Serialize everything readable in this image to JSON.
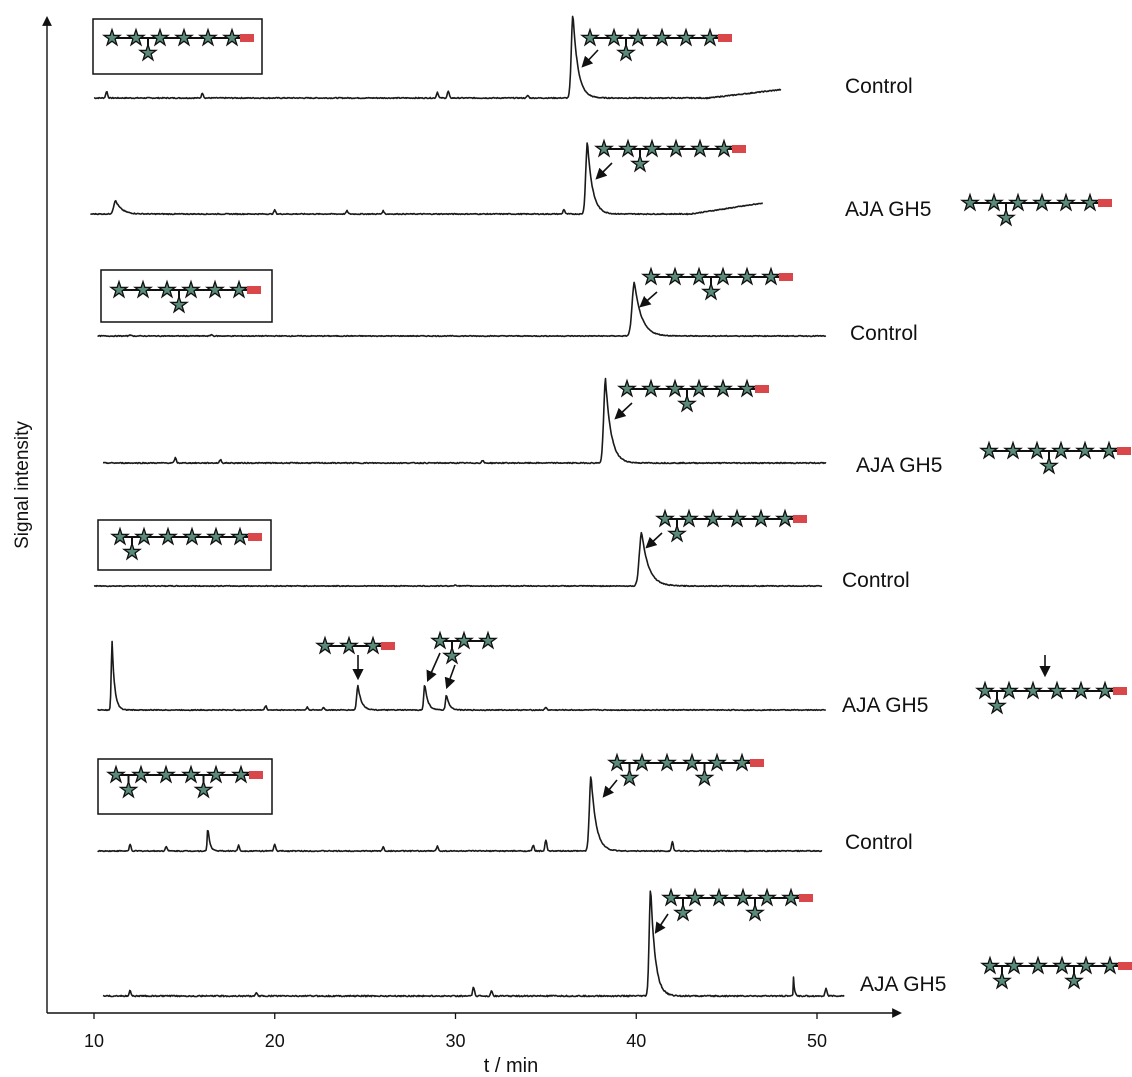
{
  "chart_data": {
    "type": "line",
    "xlabel": "t / min",
    "ylabel": "Signal intensity",
    "xticks": [
      10,
      20,
      30,
      40,
      50
    ],
    "xlim": [
      7.5,
      50.5
    ],
    "colors": {
      "trace": "#1a1a1a",
      "star_fill": "#5a8a78",
      "reducing_end": "#d9474a"
    },
    "icons": [
      "star-glycan-icon",
      "reducing-end-marker",
      "cleavage-arrow-icon"
    ],
    "series": [
      {
        "name": "Control",
        "x_start": 10.0,
        "x_end": 48.0,
        "baseline": 0.0,
        "peaks": [
          {
            "x": 36.5,
            "height": 1.0,
            "width": 0.5
          }
        ],
        "minor_peaks": [
          {
            "x": 10.7,
            "h": 0.08
          },
          {
            "x": 16.0,
            "h": 0.06
          },
          {
            "x": 29.0,
            "h": 0.07
          },
          {
            "x": 29.6,
            "h": 0.08
          },
          {
            "x": 34.0,
            "h": 0.03
          }
        ],
        "drift": 0.1
      },
      {
        "name": "AJA GH5",
        "x_start": 9.8,
        "x_end": 47.0,
        "baseline": 0.0,
        "peaks": [
          {
            "x": 37.3,
            "height": 0.93,
            "width": 0.5
          },
          {
            "x": 11.2,
            "height": 0.17,
            "width": 0.6
          }
        ],
        "minor_peaks": [
          {
            "x": 20.0,
            "h": 0.05
          },
          {
            "x": 24.0,
            "h": 0.04
          },
          {
            "x": 26.0,
            "h": 0.04
          },
          {
            "x": 36.0,
            "h": 0.06
          }
        ],
        "drift": 0.14
      },
      {
        "name": "Control",
        "x_start": 10.2,
        "x_end": 50.5,
        "baseline": 0.0,
        "peaks": [
          {
            "x": 39.9,
            "height": 0.77,
            "width": 0.7
          }
        ],
        "minor_peaks": [
          {
            "x": 12.0,
            "h": 0.02
          },
          {
            "x": 16.5,
            "h": 0.02
          }
        ],
        "drift": 0.0
      },
      {
        "name": "AJA GH5",
        "x_start": 10.5,
        "x_end": 50.5,
        "baseline": 0.0,
        "peaks": [
          {
            "x": 38.3,
            "height": 1.0,
            "width": 0.55
          }
        ],
        "minor_peaks": [
          {
            "x": 14.5,
            "h": 0.06
          },
          {
            "x": 17.0,
            "h": 0.04
          },
          {
            "x": 31.5,
            "h": 0.03
          }
        ],
        "drift": 0.0
      },
      {
        "name": "Control",
        "x_start": 10.0,
        "x_end": 50.3,
        "baseline": 0.0,
        "peaks": [
          {
            "x": 40.3,
            "height": 0.77,
            "width": 0.7
          }
        ],
        "minor_peaks": [
          {
            "x": 30.0,
            "h": 0.02
          }
        ],
        "drift": 0.0
      },
      {
        "name": "AJA GH5",
        "x_start": 10.2,
        "x_end": 50.5,
        "baseline": 0.0,
        "peaks": [
          {
            "x": 11.0,
            "height": 1.0,
            "width": 0.25
          },
          {
            "x": 24.6,
            "height": 0.36,
            "width": 0.35
          },
          {
            "x": 28.3,
            "height": 0.38,
            "width": 0.3
          },
          {
            "x": 29.5,
            "height": 0.22,
            "width": 0.3
          }
        ],
        "minor_peaks": [
          {
            "x": 19.5,
            "h": 0.06
          },
          {
            "x": 21.8,
            "h": 0.04
          },
          {
            "x": 22.7,
            "h": 0.04
          },
          {
            "x": 35.0,
            "h": 0.04
          }
        ],
        "drift": 0.0
      },
      {
        "name": "Control",
        "x_start": 10.2,
        "x_end": 50.3,
        "baseline": 0.0,
        "peaks": [
          {
            "x": 37.5,
            "height": 0.95,
            "width": 0.5
          },
          {
            "x": 16.3,
            "height": 0.3,
            "width": 0.2
          }
        ],
        "minor_peaks": [
          {
            "x": 12.0,
            "h": 0.08
          },
          {
            "x": 14.0,
            "h": 0.06
          },
          {
            "x": 18.0,
            "h": 0.07
          },
          {
            "x": 20.0,
            "h": 0.08
          },
          {
            "x": 26.0,
            "h": 0.05
          },
          {
            "x": 29.0,
            "h": 0.06
          },
          {
            "x": 34.3,
            "h": 0.07
          },
          {
            "x": 35.0,
            "h": 0.14
          },
          {
            "x": 42.0,
            "h": 0.12
          }
        ],
        "drift": 0.0
      },
      {
        "name": "AJA GH5",
        "x_start": 10.5,
        "x_end": 51.5,
        "baseline": 0.0,
        "peaks": [
          {
            "x": 40.8,
            "height": 1.0,
            "width": 0.45
          },
          {
            "x": 48.7,
            "height": 0.18,
            "width": 0.1
          }
        ],
        "minor_peaks": [
          {
            "x": 12.0,
            "h": 0.05
          },
          {
            "x": 19.0,
            "h": 0.03
          },
          {
            "x": 31.0,
            "h": 0.08
          },
          {
            "x": 32.0,
            "h": 0.05
          },
          {
            "x": 50.5,
            "h": 0.07
          }
        ],
        "drift": 0.0
      }
    ]
  }
}
